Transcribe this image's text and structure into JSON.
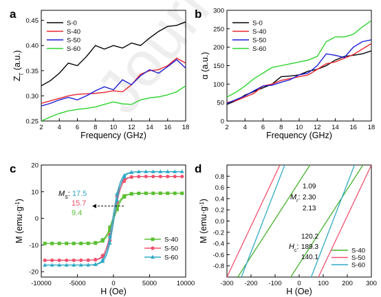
{
  "watermark": "Journal Pre-proof",
  "chart_data": [
    {
      "panel": "a",
      "type": "line",
      "xlabel": "Frequency (GHz)",
      "ylabel": "Z",
      "ylabel_sub": "T",
      "ylabel_unit": "(a.u.)",
      "xlim": [
        2,
        18
      ],
      "ylim": [
        0.25,
        0.47
      ],
      "xticks": [
        "2",
        "4",
        "6",
        "8",
        "10",
        "12",
        "14",
        "16",
        "18"
      ],
      "yticks": [
        "0.25",
        "0.30",
        "0.35",
        "0.40",
        "0.45"
      ],
      "legend_position": "top-left",
      "series": [
        {
          "name": "S-0",
          "color": "#000000",
          "x": [
            2,
            3,
            4,
            5,
            6,
            7,
            8,
            9,
            10,
            11,
            12,
            13,
            14,
            15,
            16,
            17,
            18
          ],
          "y": [
            0.32,
            0.33,
            0.345,
            0.365,
            0.36,
            0.378,
            0.4,
            0.393,
            0.4,
            0.395,
            0.405,
            0.4,
            0.415,
            0.428,
            0.438,
            0.44,
            0.447
          ]
        },
        {
          "name": "S-40",
          "color": "#e8242b",
          "x": [
            2,
            3,
            4,
            5,
            6,
            7,
            8,
            9,
            10,
            11,
            12,
            13,
            14,
            15,
            16,
            17,
            18
          ],
          "y": [
            0.285,
            0.29,
            0.295,
            0.3,
            0.303,
            0.304,
            0.305,
            0.307,
            0.31,
            0.308,
            0.322,
            0.343,
            0.35,
            0.352,
            0.36,
            0.375,
            0.365
          ]
        },
        {
          "name": "S-50",
          "color": "#1a1ad8",
          "x": [
            2,
            3,
            4,
            5,
            6,
            7,
            8,
            9,
            10,
            11,
            12,
            13,
            14,
            15,
            16,
            17,
            18
          ],
          "y": [
            0.28,
            0.285,
            0.292,
            0.297,
            0.292,
            0.3,
            0.31,
            0.318,
            0.312,
            0.332,
            0.322,
            0.34,
            0.352,
            0.345,
            0.358,
            0.372,
            0.355
          ]
        },
        {
          "name": "S-60",
          "color": "#2bd42b",
          "x": [
            2,
            3,
            4,
            5,
            6,
            7,
            8,
            9,
            10,
            11,
            12,
            13,
            14,
            15,
            16,
            17,
            18
          ],
          "y": [
            0.25,
            0.258,
            0.265,
            0.27,
            0.273,
            0.275,
            0.278,
            0.283,
            0.288,
            0.284,
            0.283,
            0.292,
            0.296,
            0.298,
            0.302,
            0.308,
            0.32
          ]
        }
      ]
    },
    {
      "panel": "b",
      "type": "line",
      "xlabel": "Frequency (GHz)",
      "ylabel": "α (a.u.)",
      "xlim": [
        2,
        18
      ],
      "ylim": [
        0,
        300
      ],
      "xticks": [
        "2",
        "4",
        "6",
        "8",
        "10",
        "12",
        "14",
        "16",
        "18"
      ],
      "yticks": [
        "0",
        "50",
        "100",
        "150",
        "200",
        "250",
        "300"
      ],
      "legend_position": "top-left",
      "series": [
        {
          "name": "S-0",
          "color": "#000000",
          "x": [
            2,
            3,
            4,
            5,
            6,
            7,
            8,
            9,
            10,
            11,
            12,
            13,
            14,
            15,
            16,
            17,
            18
          ],
          "y": [
            45,
            55,
            70,
            80,
            90,
            100,
            120,
            122,
            125,
            135,
            140,
            150,
            165,
            175,
            178,
            182,
            190
          ]
        },
        {
          "name": "S-40",
          "color": "#e8242b",
          "x": [
            2,
            3,
            4,
            5,
            6,
            7,
            8,
            9,
            10,
            11,
            12,
            13,
            14,
            15,
            16,
            17,
            18
          ],
          "y": [
            50,
            55,
            65,
            75,
            95,
            100,
            110,
            115,
            120,
            125,
            140,
            155,
            160,
            170,
            180,
            195,
            210
          ]
        },
        {
          "name": "S-50",
          "color": "#1a1ad8",
          "x": [
            2,
            3,
            4,
            5,
            6,
            7,
            8,
            9,
            10,
            11,
            12,
            13,
            14,
            15,
            16,
            17,
            18
          ],
          "y": [
            48,
            58,
            68,
            82,
            95,
            97,
            105,
            112,
            125,
            130,
            150,
            182,
            178,
            172,
            200,
            215,
            220
          ]
        },
        {
          "name": "S-60",
          "color": "#2bd42b",
          "x": [
            2,
            3,
            4,
            5,
            6,
            7,
            8,
            9,
            10,
            11,
            12,
            13,
            14,
            15,
            16,
            17,
            18
          ],
          "y": [
            65,
            78,
            95,
            115,
            130,
            145,
            150,
            155,
            160,
            165,
            175,
            215,
            228,
            228,
            235,
            255,
            272
          ]
        }
      ]
    },
    {
      "panel": "c",
      "type": "line",
      "xlabel": "H (Oe)",
      "ylabel": "M (emu·g",
      "ylabel_sup": "-1",
      "ylabel_end": ")",
      "xlim": [
        -10000,
        10000
      ],
      "ylim": [
        -22,
        20
      ],
      "xticks": [
        "-10000",
        "-5000",
        "0",
        "5000",
        "10000"
      ],
      "yticks": [
        "-20",
        "-10",
        "0",
        "10",
        "20"
      ],
      "legend_position": "bottom-right",
      "annotation": {
        "label": "M",
        "label_sub": "S",
        "sep": ":",
        "values": [
          "17.5",
          "15.7",
          "9.4"
        ],
        "colors": [
          "#2fa9c6",
          "#f0506e",
          "#5abf32"
        ]
      },
      "series": [
        {
          "name": "S-40",
          "color": "#5abf32",
          "marker": "square",
          "Ms": 9.4,
          "width": 1100
        },
        {
          "name": "S-50",
          "color": "#f0506e",
          "marker": "circle",
          "Ms": 15.7,
          "width": 1000
        },
        {
          "name": "S-60",
          "color": "#2fa9c6",
          "marker": "triangle",
          "Ms": 17.5,
          "width": 1000
        }
      ]
    },
    {
      "panel": "d",
      "type": "line",
      "xlabel": "H (Oe)",
      "ylabel": "M (emu·g",
      "ylabel_sup": "-1",
      "ylabel_end": ")",
      "xlim": [
        -300,
        300
      ],
      "ylim": [
        -1.0,
        1.0
      ],
      "xticks": [
        "-300",
        "-200",
        "-100",
        "0",
        "100",
        "200",
        "300"
      ],
      "yticks": [
        "-0.8",
        "-0.6",
        "-0.4",
        "-0.2",
        "0.0",
        "0.2",
        "0.4",
        "0.6",
        "0.8"
      ],
      "legend_position": "bottom-right",
      "annotation_mr": {
        "label": "M",
        "label_sub": "r",
        "sep": ":",
        "values": [
          "1.09",
          "2.30",
          "2.13"
        ]
      },
      "annotation_hc": {
        "label": "H",
        "label_sub": "c",
        "sep": ":",
        "values": [
          "120.2",
          "189.3",
          "140.1"
        ]
      },
      "series": [
        {
          "name": "S-40",
          "color": "#43b02a",
          "Hc": 120.2,
          "Mr": 1.09
        },
        {
          "name": "S-50",
          "color": "#f0506e",
          "Hc": 189.3,
          "Mr": 2.3
        },
        {
          "name": "S-60",
          "color": "#2fa9c6",
          "Hc": 140.1,
          "Mr": 2.13
        }
      ]
    }
  ]
}
